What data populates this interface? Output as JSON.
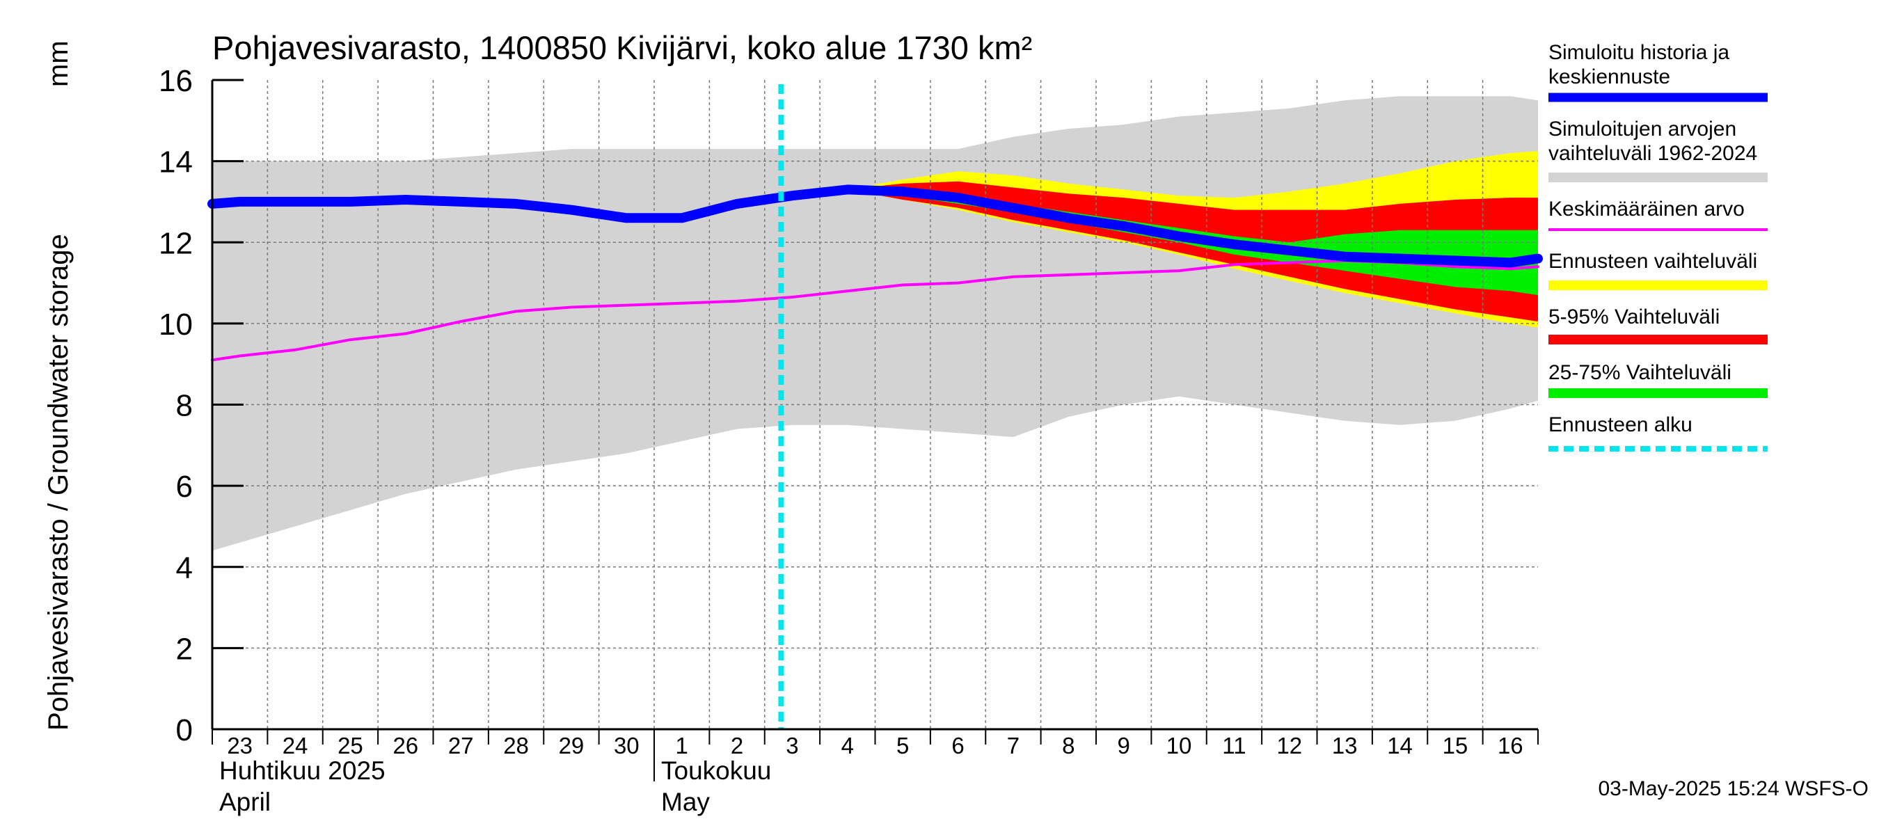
{
  "chart_data": {
    "type": "area",
    "title": "Pohjavesivarasto, 1400850 Kivijärvi, koko alue 1730 km²",
    "ylabel": "Pohjavesivarasto / Groundwater storage",
    "yunit": "mm",
    "ylim": [
      0,
      16
    ],
    "yticks": [
      0,
      2,
      4,
      6,
      8,
      10,
      12,
      14,
      16
    ],
    "grid": true,
    "xlim": [
      -0.5,
      23.5
    ],
    "x_labels": [
      "23",
      "24",
      "25",
      "26",
      "27",
      "28",
      "29",
      "30",
      "1",
      "2",
      "3",
      "4",
      "5",
      "6",
      "7",
      "8",
      "9",
      "10",
      "11",
      "12",
      "13",
      "14",
      "15",
      "16"
    ],
    "months": [
      {
        "label_fi": "Huhtikuu  2025",
        "label_en": "April",
        "start_index": 0
      },
      {
        "label_fi": "Toukokuu",
        "label_en": "May",
        "start_index": 8
      }
    ],
    "forecast_start_x": 10,
    "series": [
      {
        "name": "Simuloitujen arvojen vaihteluväli 1962-2024",
        "kind": "band",
        "color": "#d3d3d3",
        "x": [
          -0.5,
          0,
          1,
          2,
          3,
          4,
          5,
          6,
          7,
          8,
          9,
          10,
          11,
          12,
          13,
          14,
          15,
          16,
          17,
          18,
          19,
          20,
          21,
          22,
          23,
          23.5
        ],
        "low": [
          4.4,
          4.6,
          5.0,
          5.4,
          5.8,
          6.1,
          6.4,
          6.6,
          6.8,
          7.1,
          7.4,
          7.5,
          7.5,
          7.4,
          7.3,
          7.2,
          7.7,
          8.0,
          8.2,
          8.0,
          7.8,
          7.6,
          7.5,
          7.6,
          7.9,
          8.1
        ],
        "high": [
          14.0,
          14.0,
          14.0,
          14.0,
          14.0,
          14.1,
          14.2,
          14.3,
          14.3,
          14.3,
          14.3,
          14.3,
          14.3,
          14.3,
          14.3,
          14.6,
          14.8,
          14.9,
          15.1,
          15.2,
          15.3,
          15.5,
          15.6,
          15.6,
          15.6,
          15.5
        ]
      },
      {
        "name": "Ennusteen vaihteluväli",
        "kind": "band",
        "color": "#ffff00",
        "x": [
          11,
          12,
          13,
          14,
          15,
          16,
          17,
          18,
          19,
          20,
          21,
          22,
          23,
          23.5
        ],
        "low": [
          13.3,
          13.05,
          12.8,
          12.5,
          12.25,
          12.0,
          11.7,
          11.35,
          11.05,
          10.75,
          10.5,
          10.25,
          10.0,
          9.9
        ],
        "high": [
          13.3,
          13.55,
          13.75,
          13.65,
          13.45,
          13.3,
          13.15,
          13.1,
          13.25,
          13.45,
          13.7,
          14.0,
          14.2,
          14.25
        ]
      },
      {
        "name": "5-95% Vaihteluväli",
        "kind": "band",
        "color": "#ff0000",
        "x": [
          11,
          12,
          13,
          14,
          15,
          16,
          17,
          18,
          19,
          20,
          21,
          22,
          23,
          23.5
        ],
        "low": [
          13.3,
          13.05,
          12.85,
          12.55,
          12.3,
          12.05,
          11.75,
          11.45,
          11.15,
          10.85,
          10.6,
          10.35,
          10.15,
          10.05
        ],
        "high": [
          13.3,
          13.45,
          13.5,
          13.35,
          13.2,
          13.1,
          12.95,
          12.8,
          12.8,
          12.8,
          12.95,
          13.05,
          13.1,
          13.1
        ]
      },
      {
        "name": "25-75% Vaihteluväli",
        "kind": "band",
        "color": "#00ee00",
        "x": [
          11,
          12,
          13,
          14,
          15,
          16,
          17,
          18,
          19,
          20,
          21,
          22,
          23,
          23.5
        ],
        "low": [
          13.3,
          13.15,
          12.95,
          12.75,
          12.5,
          12.25,
          12.0,
          11.7,
          11.5,
          11.3,
          11.1,
          10.9,
          10.8,
          10.7
        ],
        "high": [
          13.3,
          13.3,
          13.15,
          12.95,
          12.75,
          12.55,
          12.35,
          12.15,
          12.0,
          12.2,
          12.3,
          12.3,
          12.3,
          12.3
        ]
      },
      {
        "name": "Keskimääräinen arvo",
        "kind": "line",
        "color": "#ff00ff",
        "x": [
          -0.5,
          0,
          1,
          2,
          3,
          4,
          5,
          6,
          7,
          8,
          9,
          10,
          11,
          12,
          13,
          14,
          15,
          16,
          17,
          18,
          19,
          20,
          21,
          22,
          23,
          23.5
        ],
        "y": [
          9.1,
          9.2,
          9.35,
          9.6,
          9.75,
          10.05,
          10.3,
          10.4,
          10.45,
          10.5,
          10.55,
          10.65,
          10.8,
          10.95,
          11.0,
          11.15,
          11.2,
          11.25,
          11.3,
          11.45,
          11.5,
          11.55,
          11.5,
          11.4,
          11.35,
          11.4
        ]
      },
      {
        "name": "Simuloitu historia ja keskiennuste",
        "kind": "line",
        "color": "#0000ff",
        "x": [
          -0.5,
          0,
          1,
          2,
          3,
          4,
          5,
          6,
          7,
          8,
          9,
          10,
          11,
          12,
          13,
          14,
          15,
          16,
          17,
          18,
          19,
          20,
          21,
          22,
          23,
          23.5
        ],
        "y": [
          12.95,
          13.0,
          13.0,
          13.0,
          13.05,
          13.0,
          12.95,
          12.8,
          12.6,
          12.6,
          12.95,
          13.15,
          13.3,
          13.25,
          13.1,
          12.85,
          12.6,
          12.4,
          12.15,
          11.95,
          11.8,
          11.65,
          11.6,
          11.55,
          11.5,
          11.6
        ]
      }
    ],
    "legend": {
      "placement": "right",
      "entries": [
        {
          "label": "Simuloitu historia ja keskiennuste",
          "color": "#0000ff",
          "style": "thick"
        },
        {
          "label": "Simuloitujen arvojen vaihteluväli 1962-2024",
          "color": "#d3d3d3",
          "style": "band"
        },
        {
          "label": "Keskimääräinen arvo",
          "color": "#ff00ff",
          "style": "thin"
        },
        {
          "label": "Ennusteen vaihteluväli",
          "color": "#ffff00",
          "style": "band"
        },
        {
          "label": "5-95% Vaihteluväli",
          "color": "#ff0000",
          "style": "band"
        },
        {
          "label": "25-75% Vaihteluväli",
          "color": "#00ee00",
          "style": "band"
        },
        {
          "label": "Ennusteen alku",
          "color": "#00e5ee",
          "style": "dashed"
        }
      ]
    },
    "footer": "03-May-2025 15:24 WSFS-O"
  }
}
